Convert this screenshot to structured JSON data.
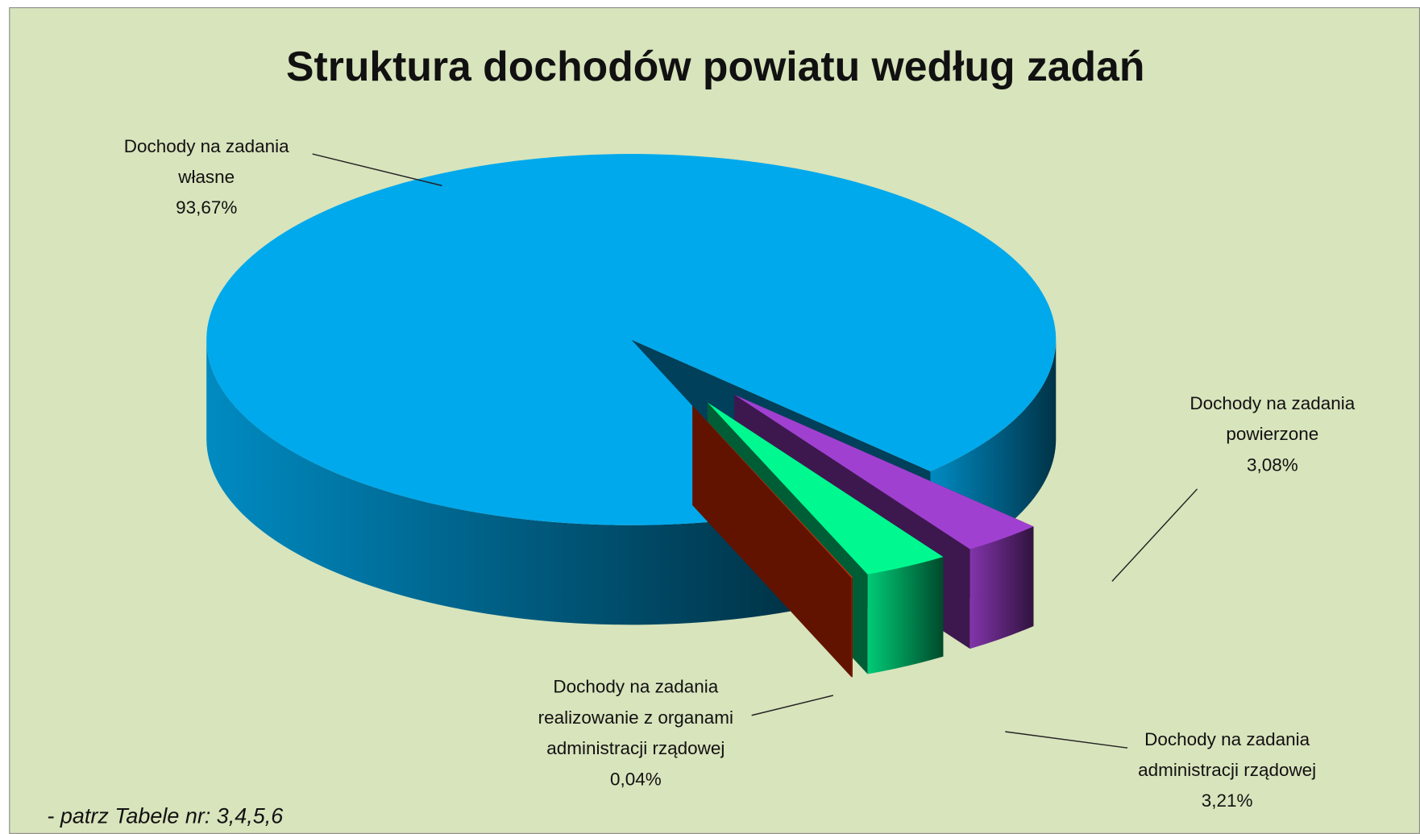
{
  "chart_data": {
    "type": "pie3d",
    "title": "Struktura dochodów powiatu według zadań",
    "categories": [
      "Dochody na zadania własne",
      "Dochody na zadania powierzone",
      "Dochody na zadania administracji rządowej",
      "Dochody na zadania realizowanie z organami administracji rządowej"
    ],
    "values": [
      93.67,
      3.08,
      3.21,
      0.04
    ],
    "value_labels": [
      "93,67%",
      "3,08%",
      "3,21%",
      "0,04%"
    ],
    "colors": [
      "#00a9ec",
      "#a040d0",
      "#00f890",
      "#ff3300"
    ],
    "note": "- patrz Tabele nr: 3,4,5,6"
  }
}
